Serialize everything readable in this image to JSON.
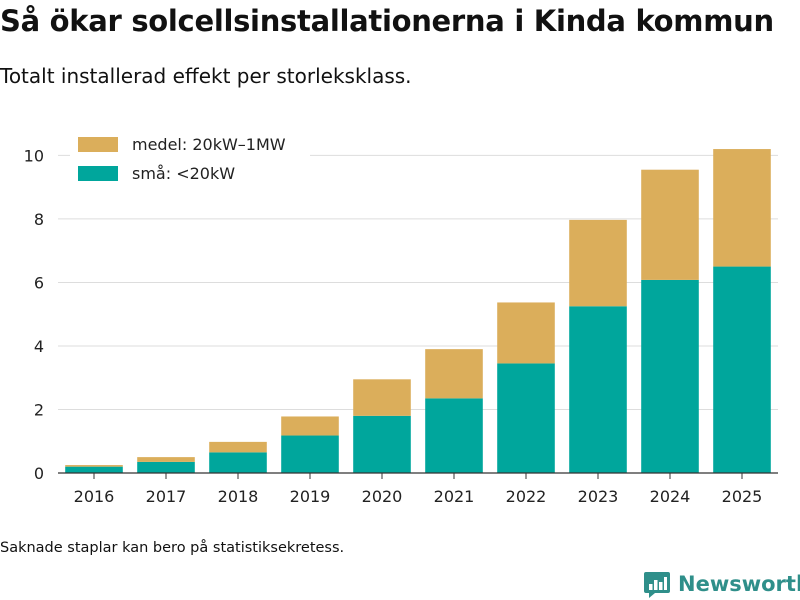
{
  "title": "Så ökar solcellsinstallationerna i Kinda kommun",
  "subtitle": "Totalt installerad effekt per storleksklass.",
  "note": "Saknade staplar kan bero på statistiksekretess.",
  "brand": {
    "name": "Newsworthy",
    "icon": "newsworthy-logo-icon",
    "color": "#2f8f8a"
  },
  "chart_data": {
    "type": "bar",
    "stacked": true,
    "categories": [
      "2016",
      "2017",
      "2018",
      "2019",
      "2020",
      "2021",
      "2022",
      "2023",
      "2024",
      "2025"
    ],
    "series": [
      {
        "name": "små: <20kW",
        "color": "#00a69c",
        "values": [
          0.2,
          0.35,
          0.65,
          1.18,
          1.8,
          2.35,
          3.45,
          5.25,
          6.08,
          6.5
        ]
      },
      {
        "name": "medel: 20kW–1MW",
        "color": "#dbae5b",
        "values": [
          0.05,
          0.15,
          0.33,
          0.6,
          1.15,
          1.55,
          1.92,
          2.72,
          3.47,
          3.7
        ]
      }
    ],
    "legend": [
      "medel: 20kW–1MW",
      "små: <20kW"
    ],
    "yticks": [
      0,
      2,
      4,
      6,
      8,
      10
    ],
    "ylim": [
      0,
      10.8
    ],
    "xlabel": "",
    "ylabel": "",
    "grid": true,
    "legend_position": "top-left"
  }
}
